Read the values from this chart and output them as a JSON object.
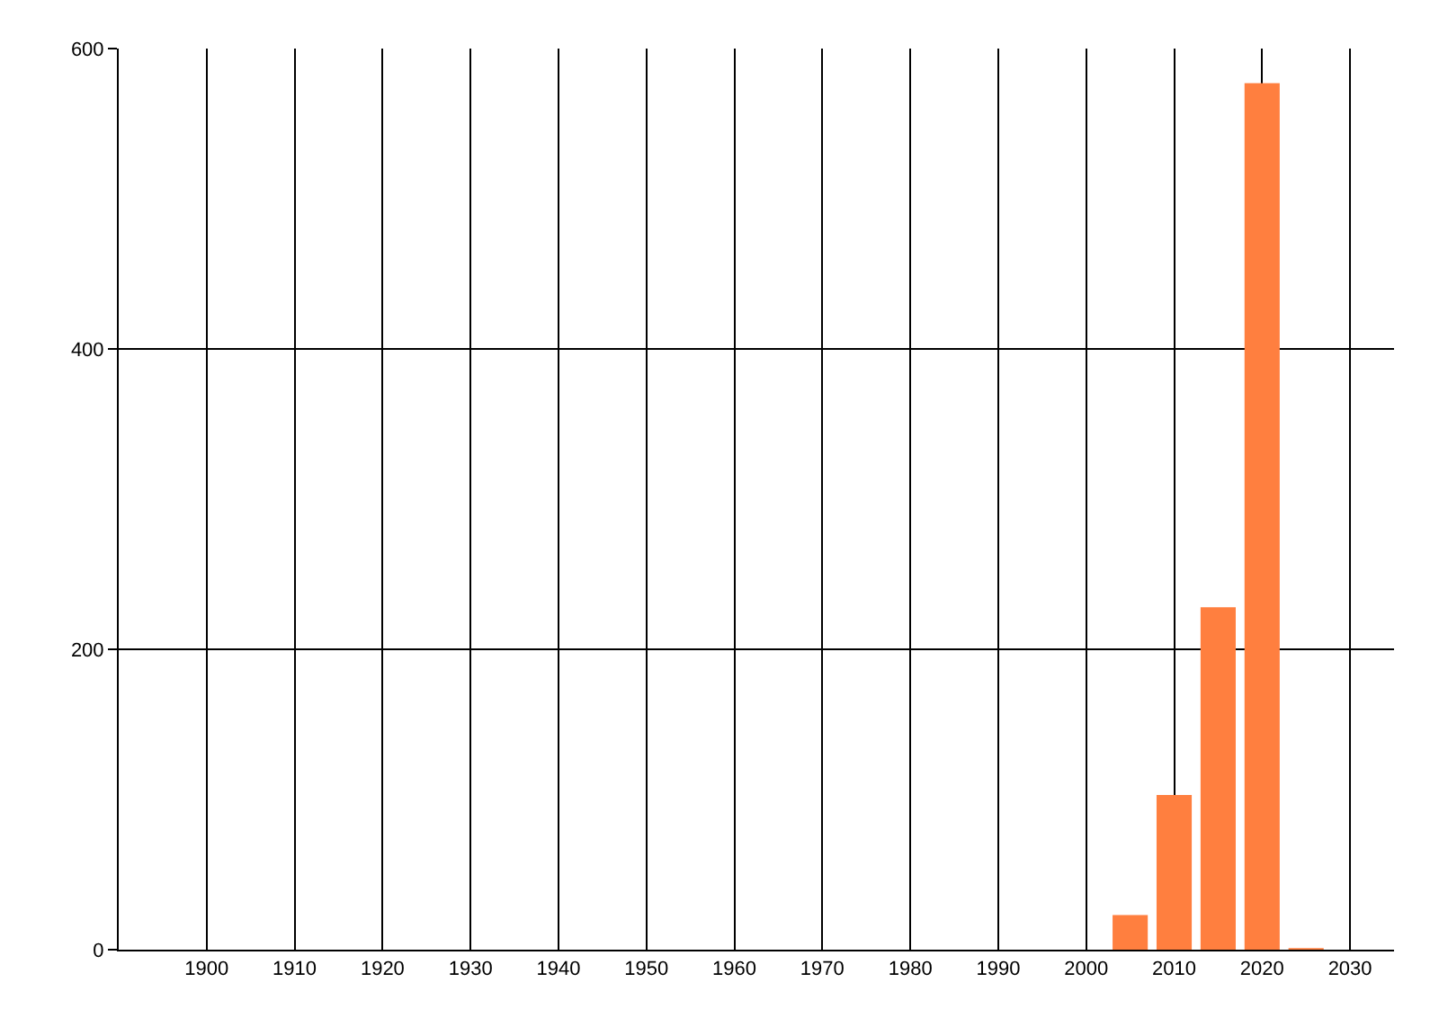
{
  "chart_data": {
    "type": "bar",
    "x": [
      2005,
      2010,
      2015,
      2020,
      2025
    ],
    "values": [
      23,
      103,
      228,
      577,
      1
    ],
    "color": "#ff7f3f",
    "xlim": [
      1890,
      2035
    ],
    "xticks": [
      1900,
      1910,
      1920,
      1930,
      1940,
      1950,
      1960,
      1970,
      1980,
      1990,
      2000,
      2010,
      2020,
      2030
    ],
    "ylim": [
      0,
      600
    ],
    "yticks": [
      0,
      200,
      400,
      600
    ],
    "grid": true
  }
}
